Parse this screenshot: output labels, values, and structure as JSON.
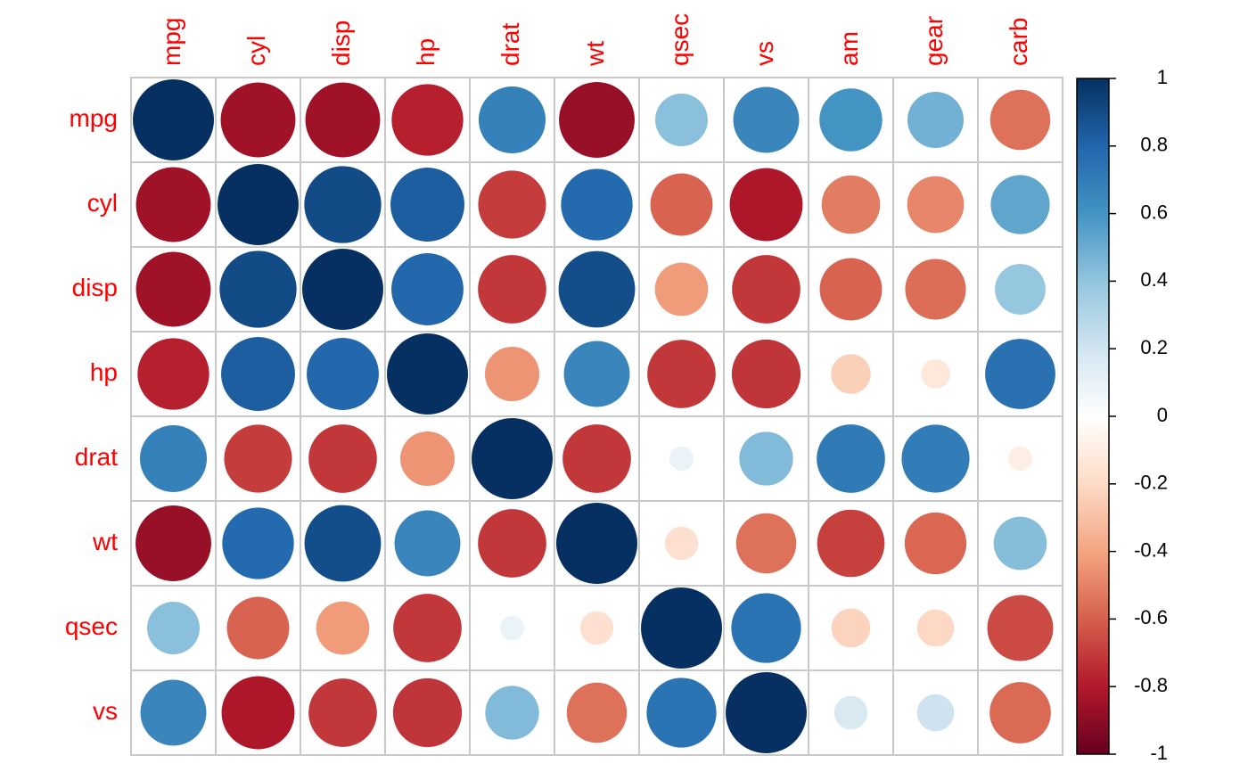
{
  "chart_data": {
    "type": "heatmap",
    "style": "circle correlation matrix",
    "columns": [
      "mpg",
      "cyl",
      "disp",
      "hp",
      "drat",
      "wt",
      "qsec",
      "vs",
      "am",
      "gear",
      "carb"
    ],
    "rows": [
      "mpg",
      "cyl",
      "disp",
      "hp",
      "drat",
      "wt",
      "qsec",
      "vs"
    ],
    "values": [
      [
        1.0,
        -0.85,
        -0.85,
        -0.78,
        0.68,
        -0.87,
        0.42,
        0.66,
        0.6,
        0.48,
        -0.55
      ],
      [
        -0.85,
        1.0,
        0.9,
        0.83,
        -0.7,
        0.78,
        -0.59,
        -0.81,
        -0.52,
        -0.49,
        0.53
      ],
      [
        -0.85,
        0.9,
        1.0,
        0.79,
        -0.71,
        0.89,
        -0.43,
        -0.71,
        -0.59,
        -0.56,
        0.39
      ],
      [
        -0.78,
        0.83,
        0.79,
        1.0,
        -0.45,
        0.66,
        -0.71,
        -0.72,
        -0.24,
        -0.13,
        0.75
      ],
      [
        0.68,
        -0.7,
        -0.71,
        -0.45,
        1.0,
        -0.71,
        0.09,
        0.44,
        0.71,
        0.7,
        -0.09
      ],
      [
        -0.87,
        0.78,
        0.89,
        0.66,
        -0.71,
        1.0,
        -0.17,
        -0.55,
        -0.69,
        -0.58,
        0.43
      ],
      [
        0.42,
        -0.59,
        -0.43,
        -0.71,
        0.09,
        -0.17,
        1.0,
        0.74,
        -0.23,
        -0.21,
        -0.66
      ],
      [
        0.66,
        -0.81,
        -0.71,
        -0.72,
        0.44,
        -0.55,
        0.74,
        1.0,
        0.17,
        0.21,
        -0.57
      ]
    ],
    "colorbar": {
      "min": -1,
      "max": 1,
      "ticks": [
        "1",
        "0.8",
        "0.6",
        "0.4",
        "0.2",
        "0",
        "-0.2",
        "-0.4",
        "-0.6",
        "-0.8",
        "-1"
      ]
    },
    "colors": {
      "label": "#ff0000",
      "grid": "#c8c8c8",
      "scale": [
        "#67001f",
        "#b2182b",
        "#d6604d",
        "#f4a582",
        "#fddbc7",
        "#ffffff",
        "#d1e5f0",
        "#92c5de",
        "#4393c3",
        "#2166ac",
        "#053061"
      ]
    }
  }
}
